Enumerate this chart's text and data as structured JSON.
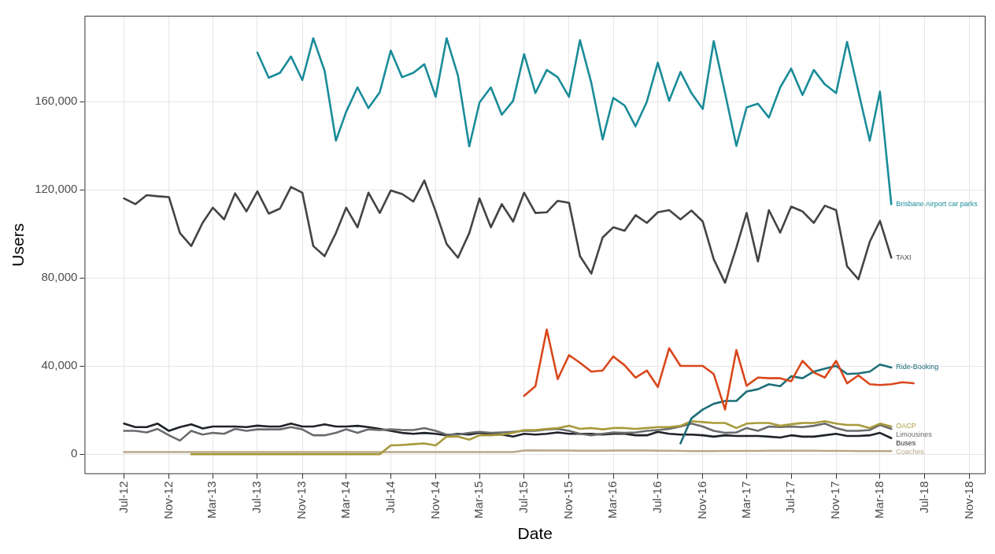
{
  "chart_data": {
    "type": "line",
    "xlabel": "Date",
    "ylabel": "Users",
    "grid": true,
    "marker": "none",
    "x": [
      "2012-07",
      "2012-08",
      "2012-09",
      "2012-10",
      "2012-11",
      "2012-12",
      "2013-01",
      "2013-02",
      "2013-03",
      "2013-04",
      "2013-05",
      "2013-06",
      "2013-07",
      "2013-08",
      "2013-09",
      "2013-10",
      "2013-11",
      "2013-12",
      "2014-01",
      "2014-02",
      "2014-03",
      "2014-04",
      "2014-05",
      "2014-06",
      "2014-07",
      "2014-08",
      "2014-09",
      "2014-10",
      "2014-11",
      "2014-12",
      "2015-01",
      "2015-02",
      "2015-03",
      "2015-04",
      "2015-05",
      "2015-06",
      "2015-07",
      "2015-08",
      "2015-09",
      "2015-10",
      "2015-11",
      "2015-12",
      "2016-01",
      "2016-02",
      "2016-03",
      "2016-04",
      "2016-05",
      "2016-06",
      "2016-07",
      "2016-08",
      "2016-09",
      "2016-10",
      "2016-11",
      "2016-12",
      "2017-01",
      "2017-02",
      "2017-03",
      "2017-04",
      "2017-05",
      "2017-06",
      "2017-07",
      "2017-08",
      "2017-09",
      "2017-10",
      "2017-11",
      "2017-12",
      "2018-01",
      "2018-02",
      "2018-03",
      "2018-04",
      "2018-05",
      "2018-06"
    ],
    "xlim": [
      "2012-03-15",
      "2018-12-15"
    ],
    "xticks": [
      {
        "value": "2012-07",
        "label": "Jul-12"
      },
      {
        "value": "2012-11",
        "label": "Nov-12"
      },
      {
        "value": "2013-03",
        "label": "Mar-13"
      },
      {
        "value": "2013-07",
        "label": "Jul-13"
      },
      {
        "value": "2013-11",
        "label": "Nov-13"
      },
      {
        "value": "2014-03",
        "label": "Mar-14"
      },
      {
        "value": "2014-07",
        "label": "Jul-14"
      },
      {
        "value": "2014-11",
        "label": "Nov-14"
      },
      {
        "value": "2015-03",
        "label": "Mar-15"
      },
      {
        "value": "2015-07",
        "label": "Jul-15"
      },
      {
        "value": "2015-11",
        "label": "Nov-15"
      },
      {
        "value": "2016-03",
        "label": "Mar-16"
      },
      {
        "value": "2016-07",
        "label": "Jul-16"
      },
      {
        "value": "2016-11",
        "label": "Nov-16"
      },
      {
        "value": "2017-03",
        "label": "Mar-17"
      },
      {
        "value": "2017-07",
        "label": "Jul-17"
      },
      {
        "value": "2017-11",
        "label": "Nov-17"
      },
      {
        "value": "2018-03",
        "label": "Mar-18"
      },
      {
        "value": "2018-07",
        "label": "Jul-18"
      },
      {
        "value": "2018-11",
        "label": "Nov-18"
      }
    ],
    "ylim": [
      -9000,
      199000
    ],
    "yticks": [
      {
        "value": 0,
        "label": "0"
      },
      {
        "value": 40000,
        "label": "40,000"
      },
      {
        "value": 80000,
        "label": "80,000"
      },
      {
        "value": 120000,
        "label": "120,000"
      },
      {
        "value": 160000,
        "label": "160,000"
      }
    ],
    "series": [
      {
        "name": "Brisbane Airport car parks",
        "color": "#1a8c99",
        "values": [
          null,
          null,
          null,
          null,
          null,
          null,
          null,
          null,
          null,
          null,
          null,
          null,
          182300,
          170900,
          173100,
          180500,
          169800,
          188800,
          174000,
          142300,
          155400,
          166500,
          157100,
          164300,
          183200,
          171100,
          173100,
          177000,
          162200,
          188800,
          171800,
          139700,
          159600,
          166500,
          154100,
          160400,
          181600,
          163900,
          174400,
          171100,
          162200,
          187900,
          168500,
          142900,
          161700,
          158300,
          148800,
          160000,
          177700,
          160400,
          173500,
          163900,
          156700,
          187500,
          163900,
          139900,
          157400,
          159100,
          152800,
          166500,
          175000,
          163000,
          174400,
          167900,
          163900,
          187100,
          164600,
          142300,
          164600,
          113500,
          null,
          null
        ]
      },
      {
        "name": "TAXI",
        "color": "#444444",
        "values": [
          116100,
          113500,
          117600,
          117100,
          116700,
          100400,
          94500,
          105000,
          111900,
          106600,
          118400,
          110200,
          119300,
          109200,
          111500,
          121300,
          118700,
          94500,
          89900,
          100400,
          111900,
          103000,
          118700,
          109500,
          119700,
          118100,
          114700,
          124200,
          110200,
          95400,
          89200,
          100400,
          116100,
          103000,
          113500,
          105600,
          118700,
          109500,
          109800,
          115000,
          114100,
          89900,
          82000,
          98400,
          103000,
          101400,
          108500,
          105000,
          109800,
          110800,
          106600,
          110600,
          105600,
          88500,
          77800,
          93800,
          109500,
          87500,
          110800,
          100600,
          112400,
          110200,
          105000,
          112800,
          110800,
          85300,
          79400,
          96400,
          105900,
          89200,
          null,
          null
        ]
      },
      {
        "color": "#d9481c",
        "values": [
          null,
          null,
          null,
          null,
          null,
          null,
          null,
          null,
          null,
          null,
          null,
          null,
          null,
          null,
          null,
          null,
          null,
          null,
          null,
          null,
          null,
          null,
          null,
          null,
          null,
          null,
          null,
          null,
          null,
          null,
          null,
          null,
          null,
          null,
          null,
          null,
          26500,
          30900,
          56600,
          34100,
          45000,
          41500,
          37500,
          38000,
          44400,
          40400,
          34800,
          38000,
          30500,
          48100,
          40100,
          40100,
          40100,
          36400,
          20300,
          47300,
          31100,
          34800,
          34500,
          34500,
          33100,
          42400,
          37100,
          34800,
          42400,
          32200,
          35800,
          31800,
          31400,
          31800,
          32700,
          32200
        ]
      },
      {
        "name": "Ride-Booking",
        "color": "#1d6f78",
        "values": [
          null,
          null,
          null,
          null,
          null,
          null,
          null,
          null,
          null,
          null,
          null,
          null,
          null,
          null,
          null,
          null,
          null,
          null,
          null,
          null,
          null,
          null,
          null,
          null,
          null,
          null,
          null,
          null,
          null,
          null,
          null,
          null,
          null,
          null,
          null,
          null,
          null,
          null,
          null,
          null,
          null,
          null,
          null,
          null,
          null,
          null,
          null,
          null,
          null,
          null,
          4900,
          16300,
          20300,
          22900,
          24200,
          24200,
          28500,
          29500,
          31800,
          30900,
          35400,
          34500,
          37500,
          38800,
          40100,
          36400,
          36700,
          37500,
          40700,
          39400,
          null,
          null
        ]
      },
      {
        "name": "OACP",
        "color": "#a89a3a",
        "values": [
          null,
          null,
          null,
          null,
          null,
          null,
          0,
          0,
          0,
          0,
          0,
          0,
          0,
          0,
          0,
          0,
          0,
          0,
          0,
          0,
          0,
          0,
          0,
          0,
          4000,
          4200,
          4600,
          4900,
          4000,
          8000,
          8000,
          6600,
          8600,
          8600,
          8900,
          9700,
          11000,
          11000,
          11500,
          11900,
          12900,
          11500,
          11900,
          11300,
          11900,
          11900,
          11500,
          11900,
          12300,
          12300,
          12900,
          15000,
          14600,
          14200,
          14200,
          11900,
          13900,
          14200,
          14200,
          12900,
          13600,
          14200,
          14200,
          15000,
          13900,
          13300,
          13300,
          11900,
          13900,
          12600,
          null,
          null
        ]
      },
      {
        "name": "Limousines",
        "color": "#6b6b6b",
        "values": [
          10600,
          10600,
          9900,
          11500,
          8600,
          6200,
          10600,
          8900,
          9700,
          9300,
          11500,
          10600,
          11300,
          11300,
          11300,
          12300,
          11300,
          8600,
          8600,
          9700,
          11300,
          9700,
          11300,
          11000,
          11300,
          11000,
          11000,
          11900,
          10600,
          8900,
          8900,
          9700,
          10200,
          9700,
          9900,
          10200,
          10600,
          10600,
          11300,
          11500,
          10600,
          9300,
          8600,
          9300,
          9900,
          9700,
          9900,
          10600,
          11000,
          11500,
          12600,
          13900,
          12600,
          10600,
          9700,
          9900,
          11900,
          10600,
          12600,
          12300,
          12600,
          12300,
          12900,
          13900,
          11900,
          10600,
          10600,
          11000,
          13300,
          11500,
          null,
          null
        ]
      },
      {
        "name": "Buses",
        "color": "#1e2328",
        "values": [
          13900,
          12300,
          12300,
          13900,
          10600,
          12300,
          13600,
          11700,
          12600,
          12600,
          12600,
          12300,
          13000,
          12600,
          12600,
          13900,
          12600,
          12600,
          13600,
          12600,
          12600,
          12900,
          12300,
          11500,
          10600,
          9700,
          9300,
          9700,
          9300,
          8600,
          9300,
          8900,
          9700,
          9300,
          8900,
          8000,
          9300,
          8900,
          9300,
          9900,
          9300,
          9300,
          9300,
          8900,
          9300,
          9300,
          8600,
          8600,
          10200,
          9300,
          8900,
          8900,
          8600,
          8000,
          8600,
          8300,
          8300,
          8300,
          8000,
          7600,
          8600,
          8000,
          8000,
          8600,
          9300,
          8300,
          8300,
          8600,
          9700,
          7300,
          null,
          null
        ]
      },
      {
        "name": "Coaches",
        "color": "#b8a888",
        "values": [
          1000,
          1000,
          1000,
          1000,
          1000,
          1000,
          1000,
          1000,
          1000,
          1000,
          1000,
          1000,
          1000,
          1000,
          1000,
          1000,
          1000,
          1000,
          1000,
          1000,
          1000,
          1000,
          1000,
          1000,
          1000,
          1000,
          1000,
          1000,
          1000,
          1000,
          1000,
          1000,
          1000,
          1000,
          1000,
          1000,
          1700,
          1800,
          1700,
          1700,
          1700,
          1600,
          1600,
          1600,
          1700,
          1700,
          1700,
          1700,
          1600,
          1600,
          1500,
          1400,
          1400,
          1400,
          1500,
          1500,
          1500,
          1500,
          1600,
          1600,
          1600,
          1600,
          1600,
          1500,
          1500,
          1500,
          1400,
          1400,
          1400,
          1400,
          null,
          null
        ]
      }
    ]
  }
}
